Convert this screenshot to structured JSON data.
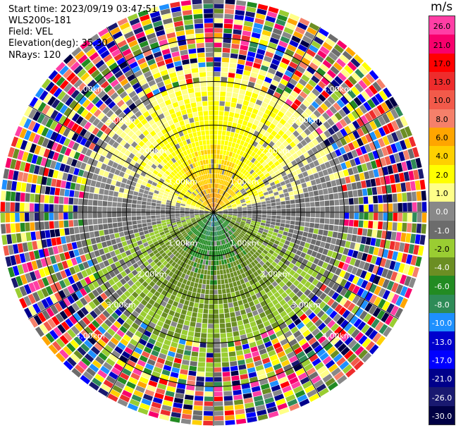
{
  "header": {
    "start_time": "Start time: 2023/09/19 03:47:51",
    "instrument": "WLS200s-181",
    "field": "Field: VEL",
    "elevation": "Elevation(deg): 35.30",
    "nrays": "NRays: 120"
  },
  "chart_data": {
    "type": "heatmap",
    "projection": "polar PPI",
    "field": "VEL",
    "units": "m/s",
    "n_rays": 120,
    "elevation_deg": 35.3,
    "range_rings_km": [
      1.0,
      2.0,
      3.0,
      4.0
    ],
    "range_ring_labels": [
      "1.00km",
      "2.00km",
      "3.00km",
      "4.00km"
    ],
    "max_range_km": 4.9,
    "spoke_step_deg": 30,
    "colorbar": {
      "unit_label": "m/s",
      "ticks": [
        "26.0",
        "21.0",
        "17.0",
        "13.0",
        "10.0",
        "8.0",
        "6.0",
        "4.0",
        "2.0",
        "1.0",
        "0.0",
        "-1.0",
        "-2.0",
        "-4.0",
        "-6.0",
        "-8.0",
        "-10.0",
        "-13.0",
        "-17.0",
        "-21.0",
        "-26.0",
        "-30.0"
      ],
      "colors": [
        "#ff3ea5",
        "#f8006c",
        "#ff0000",
        "#ee2c2c",
        "#f25a4a",
        "#f5806a",
        "#ffa500",
        "#ffd000",
        "#ffff00",
        "#ffff88",
        "#888888",
        "#6c6c6c",
        "#9acd32",
        "#6b8e23",
        "#228b22",
        "#2e8b57",
        "#1e90ff",
        "#0000cd",
        "#0000ff",
        "#00008b",
        "#191970",
        "#000044"
      ]
    },
    "pattern": {
      "clean_range_km": 3.0,
      "outer_noise": true,
      "approaching_side": "south",
      "receding_side": "north",
      "max_speed_ms": 8.0
    }
  }
}
